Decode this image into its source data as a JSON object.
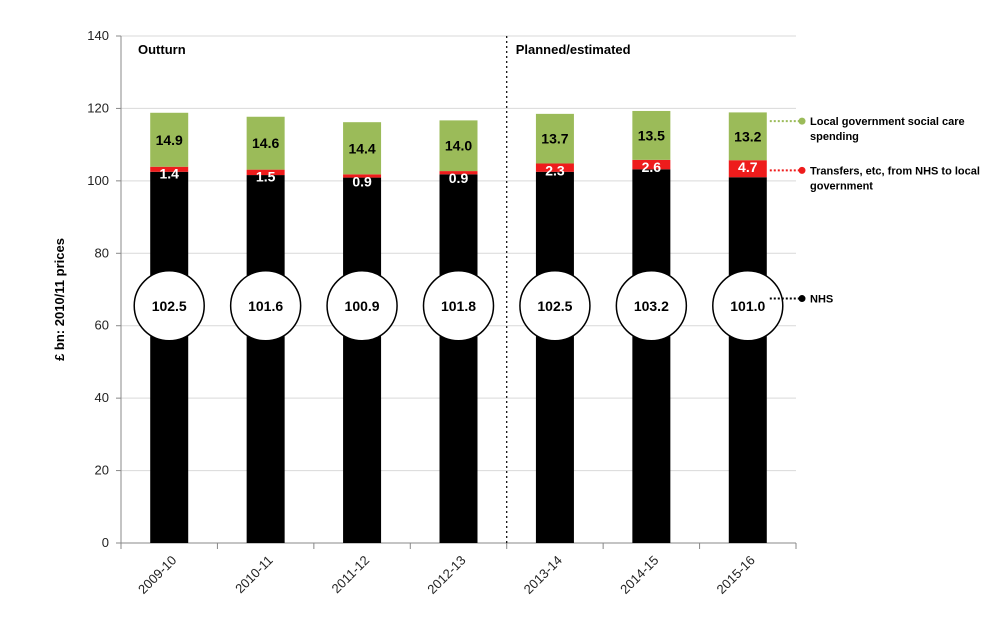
{
  "chart_data": {
    "type": "bar",
    "stacked": true,
    "categories": [
      "2009-10",
      "2010-11",
      "2011-12",
      "2012-13",
      "2013-14",
      "2014-15",
      "2015-16"
    ],
    "series": [
      {
        "name": "NHS",
        "values": [
          102.5,
          101.6,
          100.9,
          101.8,
          102.5,
          103.2,
          101.0
        ],
        "color": "#000000"
      },
      {
        "name": "Transfers, etc, from NHS to local government",
        "values": [
          1.4,
          1.5,
          0.9,
          0.9,
          2.3,
          2.6,
          4.7
        ],
        "color": "#ee1c1c"
      },
      {
        "name": "Local government social care spending",
        "values": [
          14.9,
          14.6,
          14.4,
          14.0,
          13.7,
          13.5,
          13.2
        ],
        "color": "#9bbb59"
      }
    ],
    "value_labels": {
      "NHS": [
        "102.5",
        "101.6",
        "100.9",
        "101.8",
        "102.5",
        "103.2",
        "101.0"
      ],
      "Transfers": [
        "1.4",
        "1.5",
        "0.9",
        "0.9",
        "2.3",
        "2.6",
        "4.7"
      ],
      "Social": [
        "14.9",
        "14.6",
        "14.4",
        "14.0",
        "13.7",
        "13.5",
        "13.2"
      ]
    },
    "ylabel": "£ bn: 2010/11 prices",
    "ylim": [
      0,
      140
    ],
    "yticks": [
      0,
      20,
      40,
      60,
      80,
      100,
      120,
      140
    ],
    "grid": true,
    "regions": [
      "Outturn",
      "Planned/estimated"
    ],
    "divider_after_category": "2012-13",
    "legend": {
      "placement": "right",
      "entries": [
        {
          "series": "Local government social care spending",
          "lines": [
            "Local government social care",
            "spending"
          ],
          "color": "#9bbb59"
        },
        {
          "series": "Transfers, etc, from NHS to local government",
          "lines": [
            "Transfers, etc, from NHS to local",
            "government"
          ],
          "color": "#ee1c1c"
        },
        {
          "series": "NHS",
          "lines": [
            "NHS"
          ],
          "color": "#000000"
        }
      ]
    }
  }
}
